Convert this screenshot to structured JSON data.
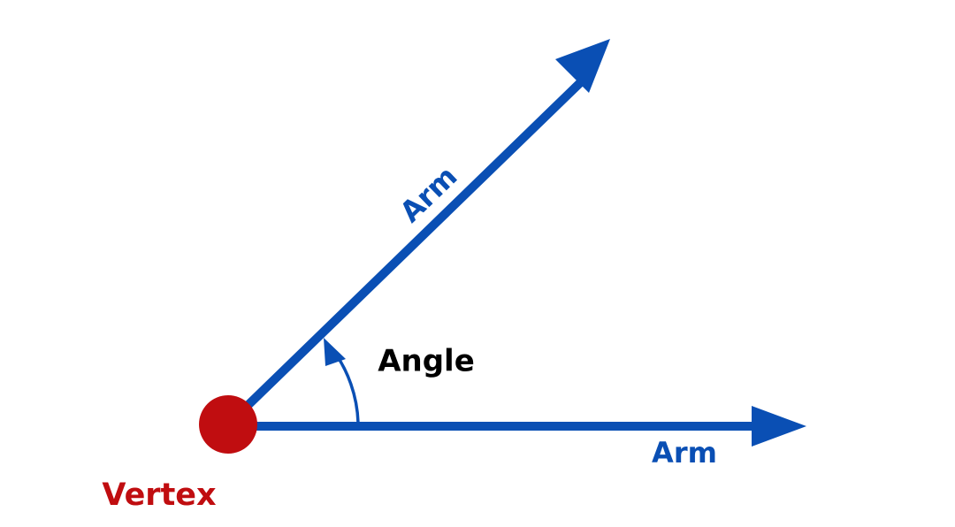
{
  "diagram": {
    "labels": {
      "upper_arm": "Arm",
      "lower_arm": "Arm",
      "angle": "Angle",
      "vertex": "Vertex"
    },
    "colors": {
      "arm": "#0a4fb4",
      "vertex": "#c00d10",
      "angle_text": "#000000",
      "background": "#ffffff"
    }
  }
}
